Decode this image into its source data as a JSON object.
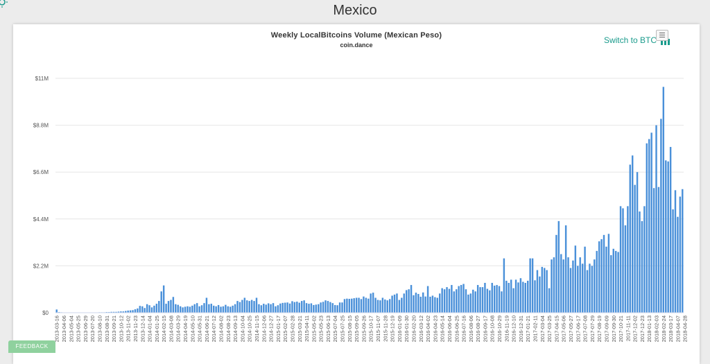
{
  "page": {
    "title": "Mexico"
  },
  "switch_link": {
    "label": "Switch to BTC"
  },
  "feedback": {
    "label": "FEEDBACK"
  },
  "colors": {
    "bar": "#4a90d9",
    "accent": "#1a9b8c"
  },
  "icons": {
    "logo": "sun-logo-icon",
    "switch": "bar-chart-icon",
    "menu": "hamburger-menu-icon"
  },
  "chart_data": {
    "type": "bar",
    "title": "Weekly LocalBitcoins Volume (Mexican Peso)",
    "subtitle": "coin.dance",
    "xlabel": "",
    "ylabel": "",
    "ylim": [
      0,
      11000000
    ],
    "grid": true,
    "y_ticks": [
      {
        "value": 0,
        "label": "$0"
      },
      {
        "value": 2200000,
        "label": "$2.2M"
      },
      {
        "value": 4400000,
        "label": "$4.4M"
      },
      {
        "value": 6600000,
        "label": "$6.6M"
      },
      {
        "value": 8800000,
        "label": "$8.8M"
      },
      {
        "value": 11000000,
        "label": "$11M"
      }
    ],
    "x_tick_labels": [
      "2013-03-16",
      "2013-04-06",
      "2013-05-04",
      "2013-05-25",
      "2013-06-29",
      "2013-07-20",
      "2013-08-10",
      "2013-08-31",
      "2013-09-21",
      "2013-10-12",
      "2013-11-02",
      "2013-11-23",
      "2013-12-14",
      "2014-01-04",
      "2014-01-25",
      "2014-02-15",
      "2014-03-08",
      "2014-03-29",
      "2014-04-19",
      "2014-05-10",
      "2014-05-31",
      "2014-06-21",
      "2014-07-12",
      "2014-08-02",
      "2014-08-23",
      "2014-09-13",
      "2014-10-04",
      "2014-10-25",
      "2014-11-15",
      "2014-12-06",
      "2014-12-27",
      "2015-01-17",
      "2015-02-07",
      "2015-02-28",
      "2015-03-21",
      "2015-04-11",
      "2015-05-02",
      "2015-05-23",
      "2015-06-13",
      "2015-07-04",
      "2015-07-25",
      "2015-08-15",
      "2015-09-05",
      "2015-09-26",
      "2015-10-17",
      "2015-11-07",
      "2015-11-28",
      "2015-12-19",
      "2016-01-09",
      "2016-01-30",
      "2016-02-20",
      "2016-03-12",
      "2016-04-02",
      "2016-04-23",
      "2016-05-14",
      "2016-06-04",
      "2016-06-25",
      "2016-07-16",
      "2016-08-06",
      "2016-08-27",
      "2016-09-17",
      "2016-10-08",
      "2016-10-29",
      "2016-11-19",
      "2016-12-10",
      "2016-12-31",
      "2017-01-21",
      "2017-02-11",
      "2017-03-04",
      "2017-03-25",
      "2017-04-15",
      "2017-05-06",
      "2017-05-27",
      "2017-06-17",
      "2017-07-08",
      "2017-07-29",
      "2017-08-19",
      "2017-09-09",
      "2017-09-30",
      "2017-10-21",
      "2017-11-11",
      "2017-12-02",
      "2017-12-23",
      "2018-01-13",
      "2018-02-03",
      "2018-02-24",
      "2018-03-17",
      "2018-04-07",
      "2018-04-28"
    ],
    "start_date": "2013-03-16",
    "values": [
      150000,
      30000,
      20000,
      10000,
      10000,
      10000,
      10000,
      10000,
      10000,
      10000,
      10000,
      10000,
      10000,
      10000,
      10000,
      10000,
      10000,
      10000,
      20000,
      20000,
      20000,
      30000,
      30000,
      40000,
      40000,
      40000,
      50000,
      60000,
      60000,
      80000,
      100000,
      110000,
      120000,
      160000,
      200000,
      320000,
      300000,
      220000,
      400000,
      350000,
      250000,
      330000,
      420000,
      550000,
      1000000,
      1280000,
      420000,
      550000,
      600000,
      740000,
      400000,
      370000,
      300000,
      250000,
      280000,
      300000,
      280000,
      330000,
      400000,
      450000,
      300000,
      350000,
      450000,
      700000,
      400000,
      420000,
      330000,
      300000,
      360000,
      280000,
      300000,
      370000,
      300000,
      280000,
      330000,
      400000,
      550000,
      500000,
      600000,
      700000,
      580000,
      550000,
      600000,
      550000,
      700000,
      400000,
      350000,
      420000,
      380000,
      440000,
      400000,
      450000,
      300000,
      350000,
      430000,
      460000,
      470000,
      480000,
      430000,
      540000,
      500000,
      520000,
      470000,
      550000,
      580000,
      450000,
      420000,
      440000,
      360000,
      380000,
      400000,
      480000,
      510000,
      580000,
      550000,
      500000,
      450000,
      360000,
      350000,
      480000,
      480000,
      640000,
      660000,
      650000,
      660000,
      680000,
      700000,
      700000,
      640000,
      760000,
      700000,
      660000,
      900000,
      940000,
      700000,
      600000,
      580000,
      700000,
      620000,
      580000,
      640000,
      800000,
      850000,
      900000,
      600000,
      700000,
      900000,
      1060000,
      1100000,
      1300000,
      820000,
      940000,
      880000,
      750000,
      950000,
      760000,
      1250000,
      750000,
      800000,
      730000,
      700000,
      900000,
      1150000,
      1100000,
      1200000,
      1120000,
      1300000,
      1000000,
      1100000,
      1250000,
      1300000,
      1350000,
      1100000,
      850000,
      900000,
      1080000,
      1000000,
      1300000,
      1200000,
      1200000,
      1400000,
      1120000,
      1050000,
      1400000,
      1270000,
      1300000,
      1250000,
      1000000,
      2550000,
      1500000,
      1400000,
      1550000,
      1150000,
      1550000,
      1420000,
      1620000,
      1450000,
      1400000,
      1500000,
      2550000,
      2550000,
      1520000,
      2000000,
      1700000,
      2150000,
      2100000,
      2000000,
      1150000,
      2500000,
      2600000,
      3650000,
      4300000,
      2750000,
      2500000,
      4100000,
      2600000,
      2100000,
      2450000,
      3150000,
      2200000,
      2600000,
      2300000,
      3100000,
      2000000,
      2300000,
      2200000,
      2500000,
      2900000,
      3350000,
      3450000,
      3650000,
      3100000,
      3700000,
      2700000,
      3000000,
      2900000,
      2850000,
      5000000,
      4900000,
      4100000,
      5000000,
      6950000,
      7380000,
      6000000,
      6600000,
      4750000,
      4300000,
      5000000,
      7950000,
      8150000,
      8450000,
      5850000,
      8800000,
      5900000,
      9100000,
      10600000,
      7150000,
      7100000,
      7780000,
      4850000,
      5750000,
      4500000,
      5450000,
      5800000
    ]
  }
}
